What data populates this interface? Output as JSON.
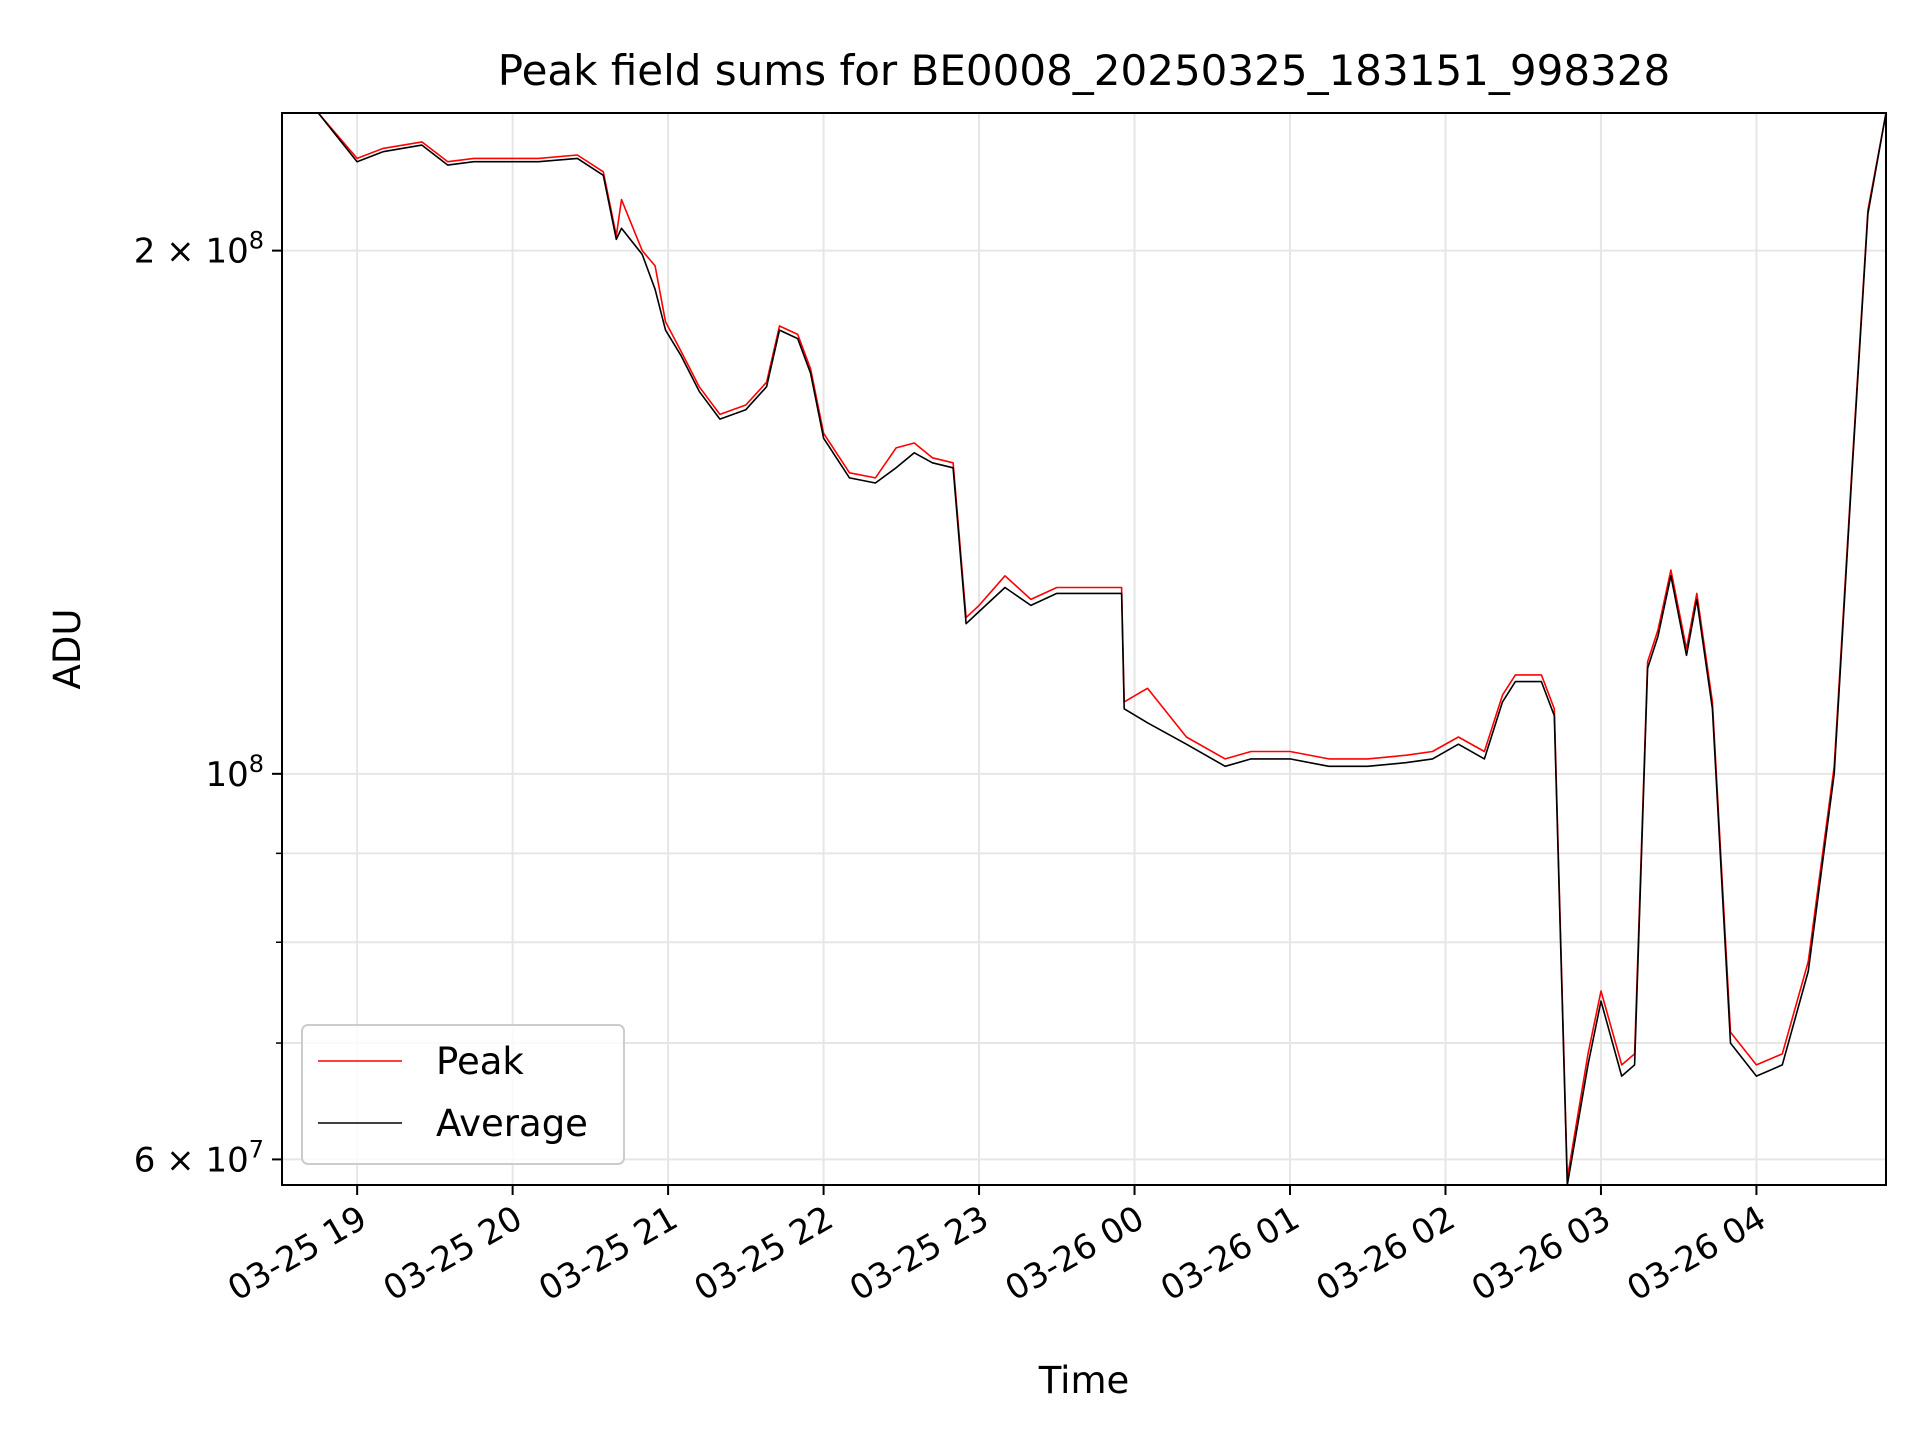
{
  "chart_data": {
    "type": "line",
    "title": "Peak field sums for BE0008_20250325_183151_998328",
    "xlabel": "Time",
    "ylabel": "ADU",
    "y_scale": "log",
    "xlim": [
      "2025-03-25 18:31",
      "2025-03-26 04:50"
    ],
    "ylim": [
      58000000,
      240000000
    ],
    "grid": true,
    "legend": {
      "placement": "lower-left",
      "entries": [
        "Peak",
        "Average"
      ]
    },
    "x_ticks": [
      "03-25 19",
      "03-25 20",
      "03-25 21",
      "03-25 22",
      "03-25 23",
      "03-26 00",
      "03-26 01",
      "03-26 02",
      "03-26 03",
      "03-26 04"
    ],
    "y_ticks": [
      {
        "value": 200000000,
        "label": "2 × 10^8"
      },
      {
        "value": 100000000,
        "label": "10^8"
      },
      {
        "value": 60000000,
        "label": "6 × 10^7"
      }
    ],
    "x": [
      "2025-03-25 18:31",
      "2025-03-25 18:45",
      "2025-03-25 19:00",
      "2025-03-25 19:10",
      "2025-03-25 19:25",
      "2025-03-25 19:35",
      "2025-03-25 19:45",
      "2025-03-25 19:55",
      "2025-03-25 20:10",
      "2025-03-25 20:25",
      "2025-03-25 20:35",
      "2025-03-25 20:40",
      "2025-03-25 20:42",
      "2025-03-25 20:50",
      "2025-03-25 20:55",
      "2025-03-25 20:59",
      "2025-03-25 21:05",
      "2025-03-25 21:12",
      "2025-03-25 21:20",
      "2025-03-25 21:30",
      "2025-03-25 21:38",
      "2025-03-25 21:43",
      "2025-03-25 21:50",
      "2025-03-25 21:55",
      "2025-03-25 22:00",
      "2025-03-25 22:10",
      "2025-03-25 22:20",
      "2025-03-25 22:28",
      "2025-03-25 22:35",
      "2025-03-25 22:42",
      "2025-03-25 22:50",
      "2025-03-25 22:55",
      "2025-03-25 23:00",
      "2025-03-25 23:10",
      "2025-03-25 23:20",
      "2025-03-25 23:30",
      "2025-03-25 23:40",
      "2025-03-25 23:55",
      "2025-03-25 23:56",
      "2025-03-26 00:05",
      "2025-03-26 00:20",
      "2025-03-26 00:35",
      "2025-03-26 00:45",
      "2025-03-26 01:00",
      "2025-03-26 01:15",
      "2025-03-26 01:30",
      "2025-03-26 01:45",
      "2025-03-26 01:55",
      "2025-03-26 02:05",
      "2025-03-26 02:15",
      "2025-03-26 02:22",
      "2025-03-26 02:27",
      "2025-03-26 02:37",
      "2025-03-26 02:42",
      "2025-03-26 02:47",
      "2025-03-26 02:55",
      "2025-03-26 03:00",
      "2025-03-26 03:08",
      "2025-03-26 03:13",
      "2025-03-26 03:18",
      "2025-03-26 03:22",
      "2025-03-26 03:27",
      "2025-03-26 03:33",
      "2025-03-26 03:37",
      "2025-03-26 03:43",
      "2025-03-26 03:50",
      "2025-03-26 04:00",
      "2025-03-26 04:10",
      "2025-03-26 04:20",
      "2025-03-26 04:30",
      "2025-03-26 04:37",
      "2025-03-26 04:43",
      "2025-03-26 04:50"
    ],
    "series": [
      {
        "name": "Average",
        "color": "#000000",
        "values": [
          240000000,
          240000000,
          225000000,
          228000000,
          230000000,
          224000000,
          225000000,
          225000000,
          225000000,
          226000000,
          221000000,
          203000000,
          206000000,
          199000000,
          190000000,
          180000000,
          174000000,
          166000000,
          160000000,
          162000000,
          167000000,
          180000000,
          178000000,
          170000000,
          156000000,
          148000000,
          147000000,
          150000000,
          153000000,
          151000000,
          150000000,
          122000000,
          124000000,
          128000000,
          125000000,
          127000000,
          127000000,
          127000000,
          109000000,
          107000000,
          104000000,
          101000000,
          102000000,
          102000000,
          101000000,
          101000000,
          101500000,
          102000000,
          104000000,
          102000000,
          110000000,
          113000000,
          113000000,
          108000000,
          58000000,
          68000000,
          74000000,
          67000000,
          68000000,
          115000000,
          120000000,
          130000000,
          117000000,
          126000000,
          109000000,
          70000000,
          67000000,
          68000000,
          77000000,
          100000000,
          150000000,
          210000000,
          240000000
        ]
      },
      {
        "name": "Peak",
        "color": "#ff0000",
        "values": [
          240000000,
          240000000,
          226000000,
          229000000,
          231000000,
          225000000,
          226000000,
          226000000,
          226000000,
          227000000,
          222000000,
          204000000,
          214000000,
          200000000,
          196000000,
          182000000,
          175000000,
          167000000,
          161000000,
          163000000,
          168000000,
          181000000,
          179000000,
          171000000,
          157000000,
          149000000,
          148000000,
          154000000,
          155000000,
          152000000,
          151000000,
          123000000,
          125000000,
          130000000,
          126000000,
          128000000,
          128000000,
          128000000,
          110000000,
          112000000,
          105000000,
          102000000,
          103000000,
          103000000,
          102000000,
          102000000,
          102500000,
          103000000,
          105000000,
          103000000,
          111000000,
          114000000,
          114000000,
          109000000,
          58500000,
          69000000,
          75000000,
          68000000,
          69000000,
          116000000,
          121000000,
          131000000,
          118000000,
          127000000,
          110000000,
          71000000,
          68000000,
          69000000,
          78000000,
          101000000,
          151000000,
          211000000,
          240000000
        ]
      }
    ]
  }
}
